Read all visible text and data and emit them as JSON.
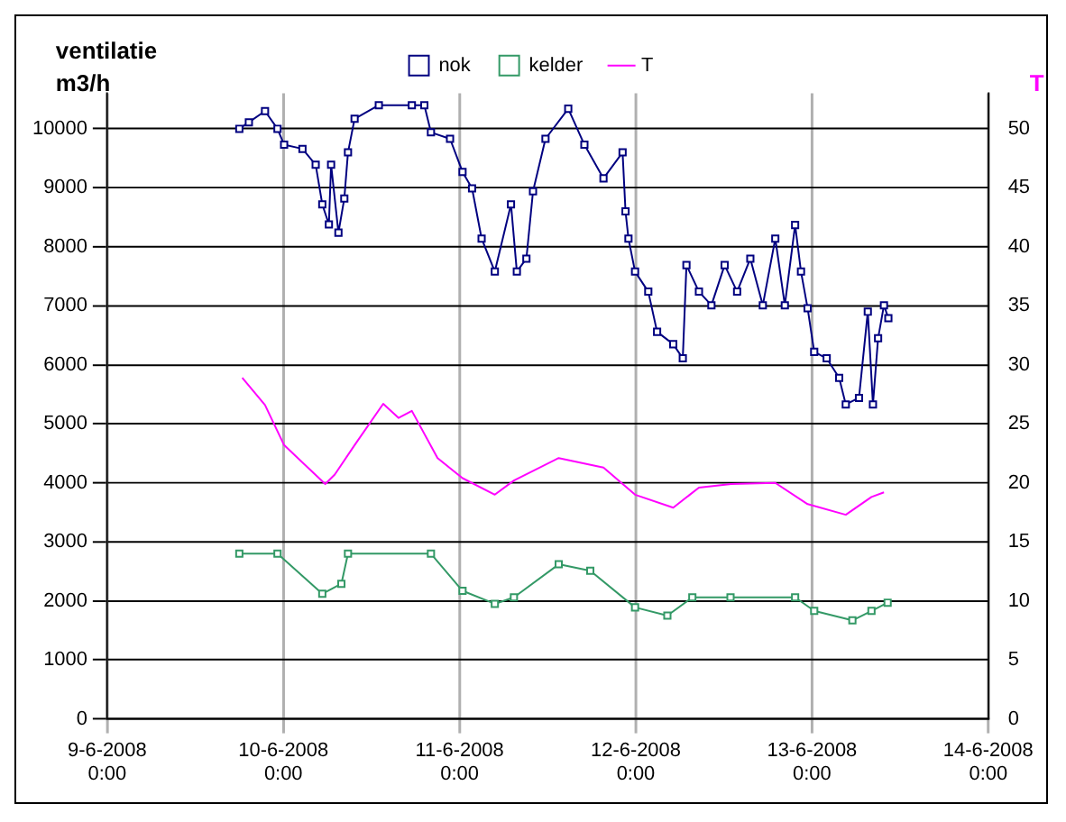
{
  "chart_data": {
    "type": "line",
    "ylabel": "ventilatie m3/h",
    "y2label": "T",
    "xlim": [
      "2008-06-09T00:00",
      "2008-06-14T00:00"
    ],
    "xticks": [
      {
        "value": "2008-06-09T00:00",
        "label": "9-6-2008\n0:00"
      },
      {
        "value": "2008-06-10T00:00",
        "label": "10-6-2008\n0:00"
      },
      {
        "value": "2008-06-11T00:00",
        "label": "11-6-2008\n0:00"
      },
      {
        "value": "2008-06-12T00:00",
        "label": "12-6-2008\n0:00"
      },
      {
        "value": "2008-06-13T00:00",
        "label": "13-6-2008\n0:00"
      },
      {
        "value": "2008-06-14T00:00",
        "label": "14-6-2008\n0:00"
      }
    ],
    "ylim": [
      0,
      10600
    ],
    "yticks": [
      0,
      1000,
      2000,
      3000,
      4000,
      5000,
      6000,
      7000,
      8000,
      9000,
      10000
    ],
    "y2lim": [
      0,
      53
    ],
    "y2ticks": [
      0,
      5,
      10,
      15,
      20,
      25,
      30,
      35,
      40,
      45,
      50
    ],
    "grid": true,
    "legend": "top",
    "series": [
      {
        "name": "nok",
        "color": "#000080",
        "marker": "square",
        "x": [
          "2008-06-09T18:00",
          "2008-06-09T19:18",
          "2008-06-09T21:30",
          "2008-06-09T23:12",
          "2008-06-10T00:06",
          "2008-06-10T02:36",
          "2008-06-10T04:24",
          "2008-06-10T05:18",
          "2008-06-10T06:12",
          "2008-06-10T06:30",
          "2008-06-10T07:30",
          "2008-06-10T08:18",
          "2008-06-10T08:48",
          "2008-06-10T09:42",
          "2008-06-10T13:00",
          "2008-06-10T17:30",
          "2008-06-10T19:12",
          "2008-06-10T20:06",
          "2008-06-10T22:42",
          "2008-06-11T00:24",
          "2008-06-11T01:42",
          "2008-06-11T03:00",
          "2008-06-11T04:48",
          "2008-06-11T07:00",
          "2008-06-11T07:48",
          "2008-06-11T09:06",
          "2008-06-11T10:00",
          "2008-06-11T11:42",
          "2008-06-11T14:48",
          "2008-06-11T17:00",
          "2008-06-11T19:36",
          "2008-06-11T22:12",
          "2008-06-11T22:36",
          "2008-06-11T23:00",
          "2008-06-11T23:54",
          "2008-06-12T01:42",
          "2008-06-12T02:54",
          "2008-06-12T05:06",
          "2008-06-12T06:24",
          "2008-06-12T06:54",
          "2008-06-12T08:36",
          "2008-06-12T10:18",
          "2008-06-12T12:06",
          "2008-06-12T13:48",
          "2008-06-12T15:36",
          "2008-06-12T17:18",
          "2008-06-12T19:00",
          "2008-06-12T20:18",
          "2008-06-12T21:42",
          "2008-06-12T22:30",
          "2008-06-12T23:24",
          "2008-06-13T00:18",
          "2008-06-13T02:00",
          "2008-06-13T03:42",
          "2008-06-13T04:36",
          "2008-06-13T06:24",
          "2008-06-13T07:36",
          "2008-06-13T08:18",
          "2008-06-13T09:00",
          "2008-06-13T09:48",
          "2008-06-13T10:24"
        ],
        "values": [
          10000,
          10110,
          10300,
          10000,
          9730,
          9660,
          9390,
          8720,
          8380,
          9390,
          8240,
          8820,
          9600,
          10170,
          10400,
          10400,
          10400,
          9940,
          9830,
          9270,
          8990,
          8140,
          7580,
          8720,
          7580,
          7800,
          8940,
          9830,
          10340,
          9730,
          9160,
          9600,
          8600,
          8140,
          7580,
          7240,
          6560,
          6350,
          6110,
          7690,
          7240,
          7010,
          7690,
          7240,
          7800,
          7010,
          8140,
          7010,
          8370,
          7580,
          6960,
          6220,
          6110,
          5780,
          5330,
          5440,
          6900,
          5330,
          6450,
          7010,
          6790
        ]
      },
      {
        "name": "kelder",
        "color": "#339966",
        "marker": "square",
        "x": [
          "2008-06-09T18:00",
          "2008-06-09T23:12",
          "2008-06-10T05:18",
          "2008-06-10T07:54",
          "2008-06-10T08:48",
          "2008-06-10T20:06",
          "2008-06-11T00:24",
          "2008-06-11T04:48",
          "2008-06-11T07:24",
          "2008-06-11T13:30",
          "2008-06-11T17:48",
          "2008-06-11T23:54",
          "2008-06-12T04:18",
          "2008-06-12T07:42",
          "2008-06-12T12:54",
          "2008-06-12T21:42",
          "2008-06-13T00:18",
          "2008-06-13T05:30",
          "2008-06-13T08:06",
          "2008-06-13T10:18"
        ],
        "values": [
          2800,
          2800,
          2120,
          2290,
          2800,
          2800,
          2170,
          1950,
          2060,
          2620,
          2510,
          1890,
          1750,
          2060,
          2060,
          2060,
          1830,
          1670,
          1830,
          1970
        ]
      },
      {
        "name": "T",
        "color": "#ff00ff",
        "marker": "none",
        "axis": "y2",
        "x": [
          "2008-06-09T18:24",
          "2008-06-09T21:30",
          "2008-06-10T00:06",
          "2008-06-10T05:42",
          "2008-06-10T07:00",
          "2008-06-10T09:42",
          "2008-06-10T13:36",
          "2008-06-10T15:42",
          "2008-06-10T17:30",
          "2008-06-10T21:00",
          "2008-06-11T00:24",
          "2008-06-11T04:48",
          "2008-06-11T07:24",
          "2008-06-11T13:30",
          "2008-06-11T19:36",
          "2008-06-11T23:54",
          "2008-06-12T05:06",
          "2008-06-12T08:36",
          "2008-06-12T13:00",
          "2008-06-12T19:00",
          "2008-06-12T23:24",
          "2008-06-13T04:36",
          "2008-06-13T08:06",
          "2008-06-13T09:48"
        ],
        "values": [
          28.9,
          26.6,
          23.2,
          19.9,
          20.7,
          23.2,
          26.7,
          25.5,
          26.1,
          22.1,
          20.4,
          19.0,
          20.2,
          22.1,
          21.3,
          19.0,
          17.9,
          19.6,
          19.9,
          20.0,
          18.2,
          17.3,
          18.8,
          19.2
        ]
      }
    ]
  }
}
